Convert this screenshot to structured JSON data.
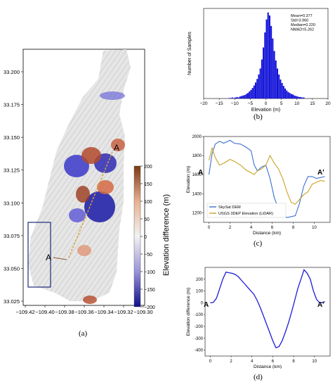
{
  "figure": {
    "caption_a": "(a)",
    "caption_b": "(b)",
    "caption_c": "(c)",
    "caption_d": "(d)"
  },
  "chart_data": [
    {
      "panel": "a",
      "type": "heatmap",
      "title": "",
      "xlabel": "",
      "ylabel": "",
      "x_ticks": [
        "−109.42",
        "−109.40",
        "−109.38",
        "−109.36",
        "−109.34",
        "−109.32",
        "−109.30"
      ],
      "y_ticks": [
        "33.200",
        "33.175",
        "33.150",
        "33.125",
        "33.100",
        "33.075",
        "33.050",
        "33.025"
      ],
      "colorbar": {
        "label": "Elevation difference (m)",
        "ticks": [
          "200",
          "150",
          "100",
          "50",
          "0",
          "−50",
          "−100",
          "−150",
          "−200"
        ],
        "range": [
          -200,
          200
        ],
        "colors": {
          "high": "#7a3a12",
          "mid_high": "#e9b191",
          "zero": "#f2f2f2",
          "mid_low": "#9a93d8",
          "low": "#10108a"
        }
      },
      "annotations": [
        "A",
        "A"
      ]
    },
    {
      "panel": "b",
      "type": "bar",
      "title": "",
      "xlabel": "Elevation (m)",
      "ylabel": "Number of Samples",
      "xlim": [
        -20,
        20
      ],
      "x_ticks": [
        "−20",
        "−15",
        "−10",
        "−5",
        "0",
        "5",
        "10",
        "15",
        "20"
      ],
      "stats": [
        "Mean=0.377",
        "Std=3.960",
        "Median=0.220",
        "NMAD=5.262"
      ],
      "bar_color": "#1010d8",
      "bin_width": 0.5,
      "bins": [
        [
          -12,
          1
        ],
        [
          -11.5,
          1
        ],
        [
          -11,
          2
        ],
        [
          -10.5,
          1
        ],
        [
          -10,
          2
        ],
        [
          -9.5,
          3
        ],
        [
          -9,
          2
        ],
        [
          -8.5,
          4
        ],
        [
          -8,
          5
        ],
        [
          -7.5,
          6
        ],
        [
          -7,
          7
        ],
        [
          -6.5,
          9
        ],
        [
          -6,
          11
        ],
        [
          -5.5,
          14
        ],
        [
          -5,
          17
        ],
        [
          -4.5,
          21
        ],
        [
          -4,
          26
        ],
        [
          -3.5,
          32
        ],
        [
          -3,
          39
        ],
        [
          -2.5,
          48
        ],
        [
          -2,
          60
        ],
        [
          -1.5,
          78
        ],
        [
          -1,
          102
        ],
        [
          -0.5,
          132
        ],
        [
          0,
          158
        ],
        [
          0.5,
          172
        ],
        [
          1,
          166
        ],
        [
          1.5,
          145
        ],
        [
          2,
          120
        ],
        [
          2.5,
          95
        ],
        [
          3,
          76
        ],
        [
          3.5,
          60
        ],
        [
          4,
          48
        ],
        [
          4.5,
          38
        ],
        [
          5,
          31
        ],
        [
          5.5,
          25
        ],
        [
          6,
          20
        ],
        [
          6.5,
          16
        ],
        [
          7,
          13
        ],
        [
          7.5,
          11
        ],
        [
          8,
          9
        ],
        [
          8.5,
          8
        ],
        [
          9,
          6
        ],
        [
          9.5,
          5
        ],
        [
          10,
          4
        ],
        [
          10.5,
          3
        ],
        [
          11,
          3
        ],
        [
          11.5,
          2
        ],
        [
          12,
          2
        ]
      ]
    },
    {
      "panel": "c",
      "type": "line",
      "title": "",
      "xlabel": "Distance (km)",
      "ylabel": "Elevation (m)",
      "xlim": [
        -0.5,
        11.5
      ],
      "ylim": [
        1100,
        2000
      ],
      "x_ticks": [
        0,
        2,
        4,
        6,
        8,
        10
      ],
      "y_ticks": [
        1200,
        1400,
        1600,
        1800,
        2000
      ],
      "end_labels": [
        "A",
        "A′"
      ],
      "series": [
        {
          "name": "SkySat DEM",
          "color": "#3b6fd1",
          "x": [
            0,
            0.3,
            0.6,
            1,
            1.4,
            2,
            2.4,
            3,
            3.5,
            4,
            4.3,
            4.6,
            5,
            5.4,
            5.8,
            6.2,
            6.6,
            7,
            7.4,
            7.8,
            8.2,
            8.6,
            9,
            9.4,
            9.8,
            10.2,
            10.6,
            11
          ],
          "y": [
            1600,
            1820,
            1920,
            1950,
            1930,
            1960,
            1930,
            1920,
            1890,
            1850,
            1700,
            1640,
            1680,
            1700,
            1560,
            1360,
            1240,
            1180,
            1150,
            1160,
            1170,
            1300,
            1480,
            1580,
            1580,
            1560,
            1570,
            1580
          ]
        },
        {
          "name": "USGS 3DEP Elevation (LiDAR)",
          "color": "#c9a227",
          "x": [
            0,
            0.3,
            0.6,
            1,
            1.4,
            2,
            2.4,
            3,
            3.5,
            4,
            4.3,
            4.6,
            5,
            5.4,
            5.8,
            6.2,
            6.6,
            7,
            7.4,
            7.8,
            8.2,
            8.6,
            9,
            9.4,
            9.8,
            10.2,
            10.6,
            11
          ],
          "y": [
            1750,
            1880,
            1780,
            1700,
            1720,
            1760,
            1740,
            1700,
            1650,
            1620,
            1600,
            1640,
            1660,
            1700,
            1800,
            1720,
            1660,
            1560,
            1420,
            1310,
            1290,
            1340,
            1390,
            1420,
            1500,
            1520,
            1540,
            1530
          ]
        }
      ]
    },
    {
      "panel": "d",
      "type": "line",
      "title": "",
      "xlabel": "Distance (km)",
      "ylabel": "Elevation difference (m)",
      "xlim": [
        -0.5,
        11.5
      ],
      "ylim": [
        -450,
        300
      ],
      "x_ticks": [
        0,
        2,
        4,
        6,
        8,
        10
      ],
      "y_ticks": [
        -400,
        -300,
        -200,
        -100,
        0,
        100,
        200
      ],
      "end_labels": [
        "A",
        "A′"
      ],
      "series": [
        {
          "name": "",
          "color": "#1c1cd6",
          "x": [
            0,
            0.3,
            0.6,
            0.9,
            1.2,
            1.5,
            1.8,
            2.1,
            2.4,
            2.7,
            3,
            3.3,
            3.6,
            3.9,
            4.2,
            4.5,
            4.8,
            5.1,
            5.4,
            5.7,
            6,
            6.3,
            6.6,
            6.9,
            7.2,
            7.5,
            7.8,
            8.1,
            8.4,
            8.7,
            9,
            9.3,
            9.6,
            9.9,
            10.2,
            10.5,
            10.8,
            11
          ],
          "y": [
            0,
            5,
            40,
            120,
            200,
            260,
            255,
            250,
            240,
            220,
            190,
            160,
            130,
            100,
            70,
            20,
            -40,
            -110,
            -180,
            -250,
            -320,
            -380,
            -370,
            -320,
            -250,
            -170,
            -80,
            20,
            120,
            200,
            280,
            250,
            200,
            100,
            30,
            0,
            5,
            10
          ]
        }
      ]
    }
  ]
}
